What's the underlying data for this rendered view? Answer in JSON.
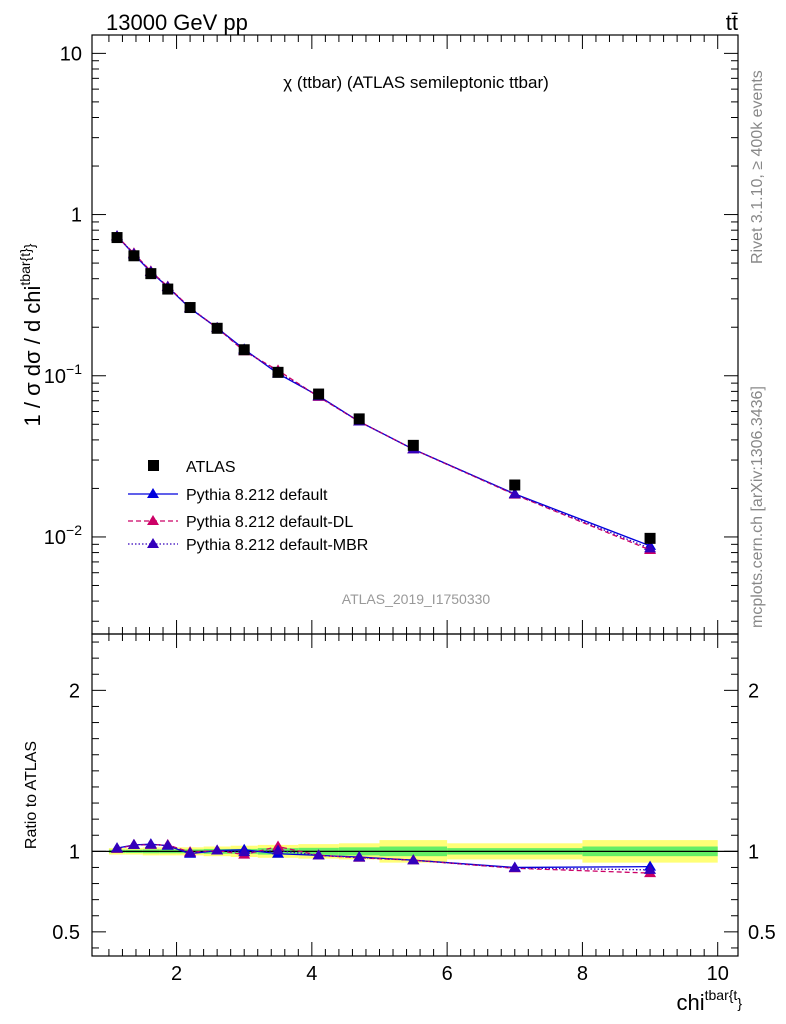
{
  "header": {
    "left_label": "13000 GeV pp",
    "right_label": "tt̄",
    "plot_title": "χ (ttbar) (ATLAS semileptonic ttbar)",
    "analysis_id": "ATLAS_2019_I1750330",
    "side_label_top": "Rivet 3.1.10, ≥ 400k events",
    "side_label_bottom": "mcplots.cern.ch [arXiv:1306.3436]"
  },
  "colors": {
    "data": "#000000",
    "default": "#0000dd",
    "dl": "#cc0066",
    "mbr": "#3300bb",
    "band_inner": "#66ee66",
    "band_outer": "#ffff77"
  },
  "chart_data": [
    {
      "type": "scatter",
      "panel": "main",
      "title": "χ (ttbar) (ATLAS semileptonic ttbar)",
      "xlabel": "chi^{tbar{t}}",
      "ylabel": "1 / σ dσ / d chi^{tbar{t}}",
      "yscale": "log",
      "xlim": [
        0.75,
        10.3
      ],
      "ylim": [
        0.0025,
        13
      ],
      "y_tick_labels": [
        {
          "value": 0.01,
          "base": "10",
          "exp": "−2"
        },
        {
          "value": 0.1,
          "base": "10",
          "exp": "−1"
        },
        {
          "value": 1,
          "base": "1",
          "exp": ""
        },
        {
          "value": 10,
          "base": "10",
          "exp": ""
        }
      ],
      "x": [
        1.12,
        1.37,
        1.62,
        1.87,
        2.2,
        2.6,
        3.0,
        3.5,
        4.1,
        4.7,
        5.5,
        7.0,
        9.0
      ],
      "series": [
        {
          "name": "ATLAS",
          "key": "data",
          "marker": "square",
          "values": [
            0.72,
            0.555,
            0.43,
            0.345,
            0.265,
            0.197,
            0.145,
            0.105,
            0.077,
            0.054,
            0.037,
            0.021,
            0.0098
          ]
        },
        {
          "name": "Pythia 8.212 default",
          "key": "default",
          "marker": "triangle",
          "line": "solid",
          "values": [
            0.735,
            0.565,
            0.44,
            0.355,
            0.262,
            0.198,
            0.146,
            0.103,
            0.075,
            0.052,
            0.035,
            0.0185,
            0.0088
          ]
        },
        {
          "name": "Pythia 8.212 default-DL",
          "key": "dl",
          "marker": "triangle",
          "line": "dashed",
          "values": [
            0.733,
            0.575,
            0.445,
            0.358,
            0.264,
            0.198,
            0.142,
            0.108,
            0.074,
            0.052,
            0.035,
            0.0183,
            0.0083
          ]
        },
        {
          "name": "Pythia 8.212 default-MBR",
          "key": "mbr",
          "marker": "triangle",
          "line": "dotted",
          "values": [
            0.734,
            0.57,
            0.442,
            0.356,
            0.263,
            0.198,
            0.144,
            0.105,
            0.0745,
            0.052,
            0.035,
            0.0184,
            0.0085
          ]
        }
      ]
    },
    {
      "type": "line",
      "panel": "ratio",
      "ylabel": "Ratio to ATLAS",
      "xlabel": "chi^{tbar{t}}",
      "xlim": [
        0.75,
        10.3
      ],
      "ylim": [
        0.35,
        2.35
      ],
      "x_ticks": [
        2,
        4,
        6,
        8,
        10
      ],
      "y_ticks": [
        0.5,
        1,
        2
      ],
      "band_edges": [
        1.0,
        1.25,
        1.5,
        1.75,
        2.0,
        2.4,
        2.8,
        3.2,
        3.8,
        4.4,
        5.0,
        6.0,
        8.0,
        10.0
      ],
      "band_inner_halfwidth": [
        0.01,
        0.01,
        0.012,
        0.012,
        0.012,
        0.015,
        0.015,
        0.02,
        0.022,
        0.025,
        0.03,
        0.02,
        0.03
      ],
      "band_outer_halfwidth": [
        0.02,
        0.02,
        0.025,
        0.025,
        0.025,
        0.03,
        0.035,
        0.04,
        0.045,
        0.05,
        0.07,
        0.05,
        0.07
      ],
      "x": [
        1.12,
        1.37,
        1.62,
        1.87,
        2.2,
        2.6,
        3.0,
        3.5,
        4.1,
        4.7,
        5.5,
        7.0,
        9.0
      ],
      "series": [
        {
          "name": "Pythia 8.212 default",
          "key": "default",
          "line": "solid",
          "values": [
            1.02,
            1.04,
            1.045,
            1.035,
            0.985,
            1.005,
            1.01,
            0.985,
            0.975,
            0.965,
            0.945,
            0.9,
            0.905
          ],
          "errors": [
            0.01,
            0.01,
            0.01,
            0.01,
            0.01,
            0.01,
            0.01,
            0.01,
            0.01,
            0.012,
            0.012,
            0.02,
            0.03
          ]
        },
        {
          "name": "Pythia 8.212 default-DL",
          "key": "dl",
          "line": "dashed",
          "values": [
            1.015,
            1.04,
            1.04,
            1.04,
            0.995,
            1.005,
            0.98,
            1.03,
            0.975,
            0.96,
            0.945,
            0.895,
            0.865
          ],
          "errors": [
            0.01,
            0.01,
            0.01,
            0.01,
            0.01,
            0.01,
            0.01,
            0.01,
            0.01,
            0.012,
            0.012,
            0.02,
            0.02
          ]
        },
        {
          "name": "Pythia 8.212 default-MBR",
          "key": "mbr",
          "line": "dotted",
          "values": [
            1.018,
            1.04,
            1.042,
            1.037,
            0.99,
            1.005,
            0.995,
            1.005,
            0.975,
            0.962,
            0.945,
            0.897,
            0.885
          ],
          "errors": [
            0.01,
            0.01,
            0.01,
            0.01,
            0.01,
            0.01,
            0.01,
            0.01,
            0.01,
            0.012,
            0.012,
            0.02,
            0.025
          ]
        }
      ]
    }
  ]
}
